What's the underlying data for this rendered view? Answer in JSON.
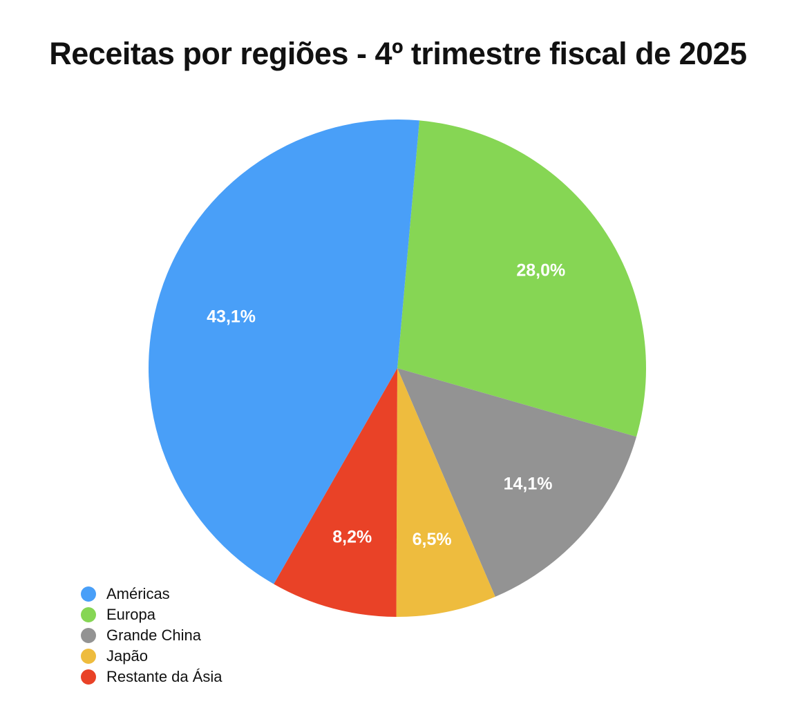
{
  "chart_data": {
    "type": "pie",
    "title": "Receitas por regiões - 4º trimestre fiscal de 2025",
    "categories": [
      "Américas",
      "Europa",
      "Grande China",
      "Japão",
      "Restante da Ásia"
    ],
    "values": [
      43.1,
      28.0,
      14.1,
      6.5,
      8.2
    ],
    "data_labels": [
      "43,1%",
      "28,0%",
      "14,1%",
      "6,5%",
      "8,2%"
    ],
    "colors": [
      "#499FF8",
      "#86D654",
      "#939393",
      "#EEBC3E",
      "#E94227"
    ],
    "legend_position": "bottom-left",
    "slice_order_clockwise": [
      "Europa",
      "Grande China",
      "Japão",
      "Restante da Ásia",
      "Américas"
    ]
  }
}
